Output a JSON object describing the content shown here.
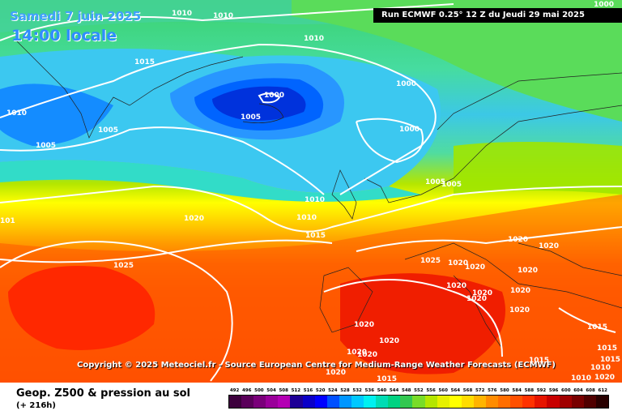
{
  "header": {
    "date": "Samedi 7 juin 2025",
    "time": "14:00 locale",
    "run": "Run ECMWF 0.25° 12 Z du Jeudi 29 mai 2025"
  },
  "copyright": "Copyright © 2025 Meteociel.fr - Source European Centre for Medium-Range Weather Forecasts (ECMWF)",
  "footer": {
    "title": "Geop. Z500 & pression au sol",
    "step": "(+ 216h)"
  },
  "scale": {
    "labels": [
      "492",
      "496",
      "500",
      "504",
      "508",
      "512",
      "516",
      "520",
      "524",
      "528",
      "532",
      "536",
      "540",
      "544",
      "548",
      "552",
      "556",
      "560",
      "564",
      "568",
      "572",
      "576",
      "580",
      "584",
      "588",
      "592",
      "596",
      "600",
      "604",
      "608",
      "612"
    ],
    "colors": [
      "#3c003c",
      "#5a005a",
      "#7a007a",
      "#9a009a",
      "#b400b4",
      "#1e0096",
      "#0a00c8",
      "#0000ff",
      "#0050ff",
      "#0096ff",
      "#00c8ff",
      "#00f0f0",
      "#00dcb4",
      "#00d282",
      "#32c850",
      "#78dc28",
      "#b4e600",
      "#e6f000",
      "#ffff00",
      "#ffdc00",
      "#ffb400",
      "#ff8c00",
      "#ff6e00",
      "#ff5000",
      "#ff3200",
      "#e61400",
      "#c80000",
      "#a00000",
      "#780000",
      "#500000",
      "#280000"
    ]
  },
  "isobar_labels": [
    "1010",
    "1010",
    "1015",
    "1010",
    "1000",
    "1000",
    "1005",
    "1000",
    "1010",
    "1005",
    "1005",
    "1005",
    "1000",
    "1005",
    "1010",
    "1010",
    "1015",
    "1020",
    "1025",
    "1020",
    "1020",
    "1020",
    "1025",
    "1020",
    "1020",
    "1020",
    "1020",
    "1020",
    "1020",
    "1020",
    "1020",
    "1020",
    "1020",
    "1020",
    "1020",
    "1015",
    "1015",
    "1015",
    "1015",
    "1010",
    "1010",
    "1015",
    "1020",
    "101"
  ]
}
